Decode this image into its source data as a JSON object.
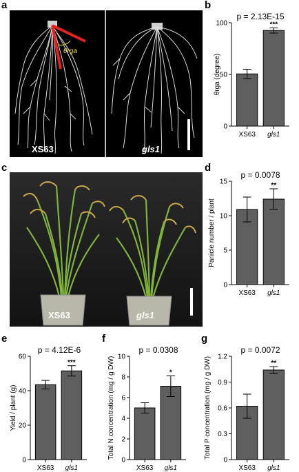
{
  "panels": {
    "a": {
      "letter": "a",
      "left_label": "XS63",
      "right_label": "gls1",
      "angle_label": "θrga"
    },
    "b": {
      "letter": "b"
    },
    "c": {
      "letter": "c",
      "left_label": "XS63",
      "right_label": "gls1"
    },
    "d": {
      "letter": "d"
    },
    "e": {
      "letter": "e"
    },
    "f": {
      "letter": "f"
    },
    "g": {
      "letter": "g"
    }
  },
  "colors": {
    "bar": "#5f5f5f",
    "root_bg": "#000000",
    "root_red": "#e8201e",
    "plant_bg": "#1c1c1c"
  },
  "icons": [
    "root-system-image",
    "rice-plant-image",
    "scale-bar"
  ],
  "chart_data": [
    {
      "id": "b",
      "type": "bar",
      "categories": [
        "XS63",
        "gls1"
      ],
      "values": [
        50.5,
        92.5
      ],
      "errors": [
        4.5,
        2.5
      ],
      "ylabel": "θrga (degree)",
      "ylim": [
        0,
        100
      ],
      "yticks": [
        0,
        50,
        100
      ],
      "pvalue": "p = 2.13E-15",
      "significance": "***"
    },
    {
      "id": "d",
      "type": "bar",
      "categories": [
        "XS63",
        "gls1"
      ],
      "values": [
        10.9,
        12.4
      ],
      "errors": [
        1.8,
        1.5
      ],
      "ylabel": "Panicle number / plant",
      "ylim": [
        0,
        15
      ],
      "yticks": [
        0,
        5,
        10,
        15
      ],
      "pvalue": "p = 0.0078",
      "significance": "**"
    },
    {
      "id": "e",
      "type": "bar",
      "categories": [
        "XS63",
        "gls1"
      ],
      "values": [
        43.5,
        51.5
      ],
      "errors": [
        2.5,
        3.0
      ],
      "ylabel": "Yield / plant (g)",
      "ylim": [
        0,
        60
      ],
      "yticks": [
        0,
        20,
        40,
        60
      ],
      "pvalue": "p = 4.12E-6",
      "significance": "***"
    },
    {
      "id": "f",
      "type": "bar",
      "categories": [
        "XS63",
        "gls1"
      ],
      "values": [
        5.0,
        7.1
      ],
      "errors": [
        0.5,
        1.0
      ],
      "ylabel": "Total N concentration (mg / g DW)",
      "ylim": [
        0,
        10
      ],
      "yticks": [
        0,
        2,
        4,
        6,
        8,
        10
      ],
      "pvalue": "p = 0.0308",
      "significance": "*"
    },
    {
      "id": "g",
      "type": "bar",
      "categories": [
        "XS63",
        "gls1"
      ],
      "values": [
        0.62,
        1.04
      ],
      "errors": [
        0.14,
        0.04
      ],
      "ylabel": "Total P concentration (mg / g DW)",
      "ylim": [
        0,
        1.2
      ],
      "yticks": [
        0,
        0.3,
        0.6,
        0.9,
        1.2
      ],
      "pvalue": "p = 0.0072",
      "significance": "**"
    }
  ]
}
